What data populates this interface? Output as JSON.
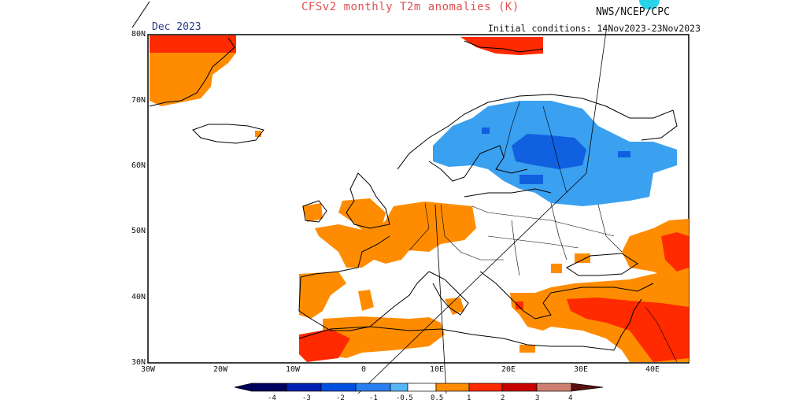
{
  "title": "CFSv2 monthly T2m anomalies (K)",
  "agency": "NWS/NCEP/CPC",
  "valid_month": "Dec 2023",
  "initial_conditions": "Initial conditions: 14Nov2023-23Nov2023",
  "map": {
    "region": "Europe",
    "lat_labels": [
      "80N",
      "70N",
      "60N",
      "50N",
      "40N",
      "30N"
    ],
    "lon_labels": [
      "30W",
      "20W",
      "10W",
      "0",
      "10E",
      "20E",
      "30E",
      "40E"
    ],
    "colors": {
      "border": "#000000",
      "warm_1": "#ff8c00",
      "warm_2": "#ff2a00",
      "warm_3": "#c80000",
      "cold_1": "#3aa0f0",
      "cold_2": "#1060e0"
    }
  },
  "colorbar": {
    "labels": [
      "-4",
      "-3",
      "-2",
      "-1",
      "-0.5",
      "0.5",
      "1",
      "2",
      "3",
      "4"
    ],
    "colors": [
      "#000060",
      "#0020b0",
      "#0050e0",
      "#2a7ef0",
      "#58b4f8",
      "#ffffff",
      "#ff8c00",
      "#ff2a00",
      "#c80000",
      "#7a1010",
      "#d08070",
      "#5a1010"
    ]
  }
}
